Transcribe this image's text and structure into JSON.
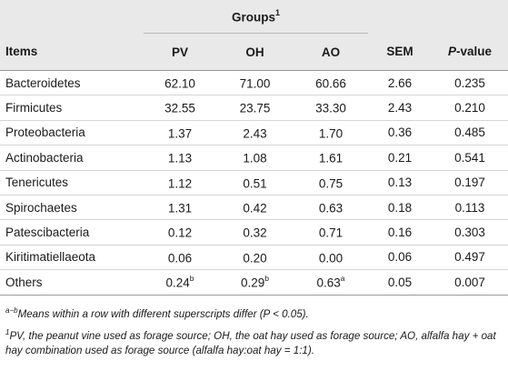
{
  "table": {
    "group_header": {
      "label": "Groups",
      "superscript": "1"
    },
    "columns": {
      "items": "Items",
      "pv": "PV",
      "oh": "OH",
      "ao": "AO",
      "sem": "SEM",
      "p_value_italic": "P",
      "p_value_rest": "-value"
    },
    "rows": [
      {
        "item": "Bacteroidetes",
        "pv": "62.10",
        "pv_sup": "",
        "oh": "71.00",
        "oh_sup": "",
        "ao": "60.66",
        "ao_sup": "",
        "sem": "2.66",
        "p": "0.235"
      },
      {
        "item": "Firmicutes",
        "pv": "32.55",
        "pv_sup": "",
        "oh": "23.75",
        "oh_sup": "",
        "ao": "33.30",
        "ao_sup": "",
        "sem": "2.43",
        "p": "0.210"
      },
      {
        "item": "Proteobacteria",
        "pv": "1.37",
        "pv_sup": "",
        "oh": "2.43",
        "oh_sup": "",
        "ao": "1.70",
        "ao_sup": "",
        "sem": "0.36",
        "p": "0.485"
      },
      {
        "item": "Actinobacteria",
        "pv": "1.13",
        "pv_sup": "",
        "oh": "1.08",
        "oh_sup": "",
        "ao": "1.61",
        "ao_sup": "",
        "sem": "0.21",
        "p": "0.541"
      },
      {
        "item": "Tenericutes",
        "pv": "1.12",
        "pv_sup": "",
        "oh": "0.51",
        "oh_sup": "",
        "ao": "0.75",
        "ao_sup": "",
        "sem": "0.13",
        "p": "0.197"
      },
      {
        "item": "Spirochaetes",
        "pv": "1.31",
        "pv_sup": "",
        "oh": "0.42",
        "oh_sup": "",
        "ao": "0.63",
        "ao_sup": "",
        "sem": "0.18",
        "p": "0.113"
      },
      {
        "item": "Patescibacteria",
        "pv": "0.12",
        "pv_sup": "",
        "oh": "0.32",
        "oh_sup": "",
        "ao": "0.71",
        "ao_sup": "",
        "sem": "0.16",
        "p": "0.303"
      },
      {
        "item": "Kiritimatiellaeota",
        "pv": "0.06",
        "pv_sup": "",
        "oh": "0.20",
        "oh_sup": "",
        "ao": "0.00",
        "ao_sup": "",
        "sem": "0.06",
        "p": "0.497"
      },
      {
        "item": "Others",
        "pv": "0.24",
        "pv_sup": "b",
        "oh": "0.29",
        "oh_sup": "b",
        "ao": "0.63",
        "ao_sup": "a",
        "sem": "0.05",
        "p": "0.007"
      }
    ]
  },
  "footnotes": {
    "fn1_marker": "a−b",
    "fn1_text": "Means within a row with different superscripts differ (P < 0.05).",
    "fn2_marker": "1",
    "fn2_text": "PV, the peanut vine used as forage source; OH, the oat hay used as forage source; AO, alfalfa hay + oat hay combination used as forage source (alfalfa hay:oat hay = 1:1)."
  },
  "colors": {
    "header_background": "#e9e9ea",
    "text": "#1a1a1a",
    "rule": "#d6d6d6"
  }
}
